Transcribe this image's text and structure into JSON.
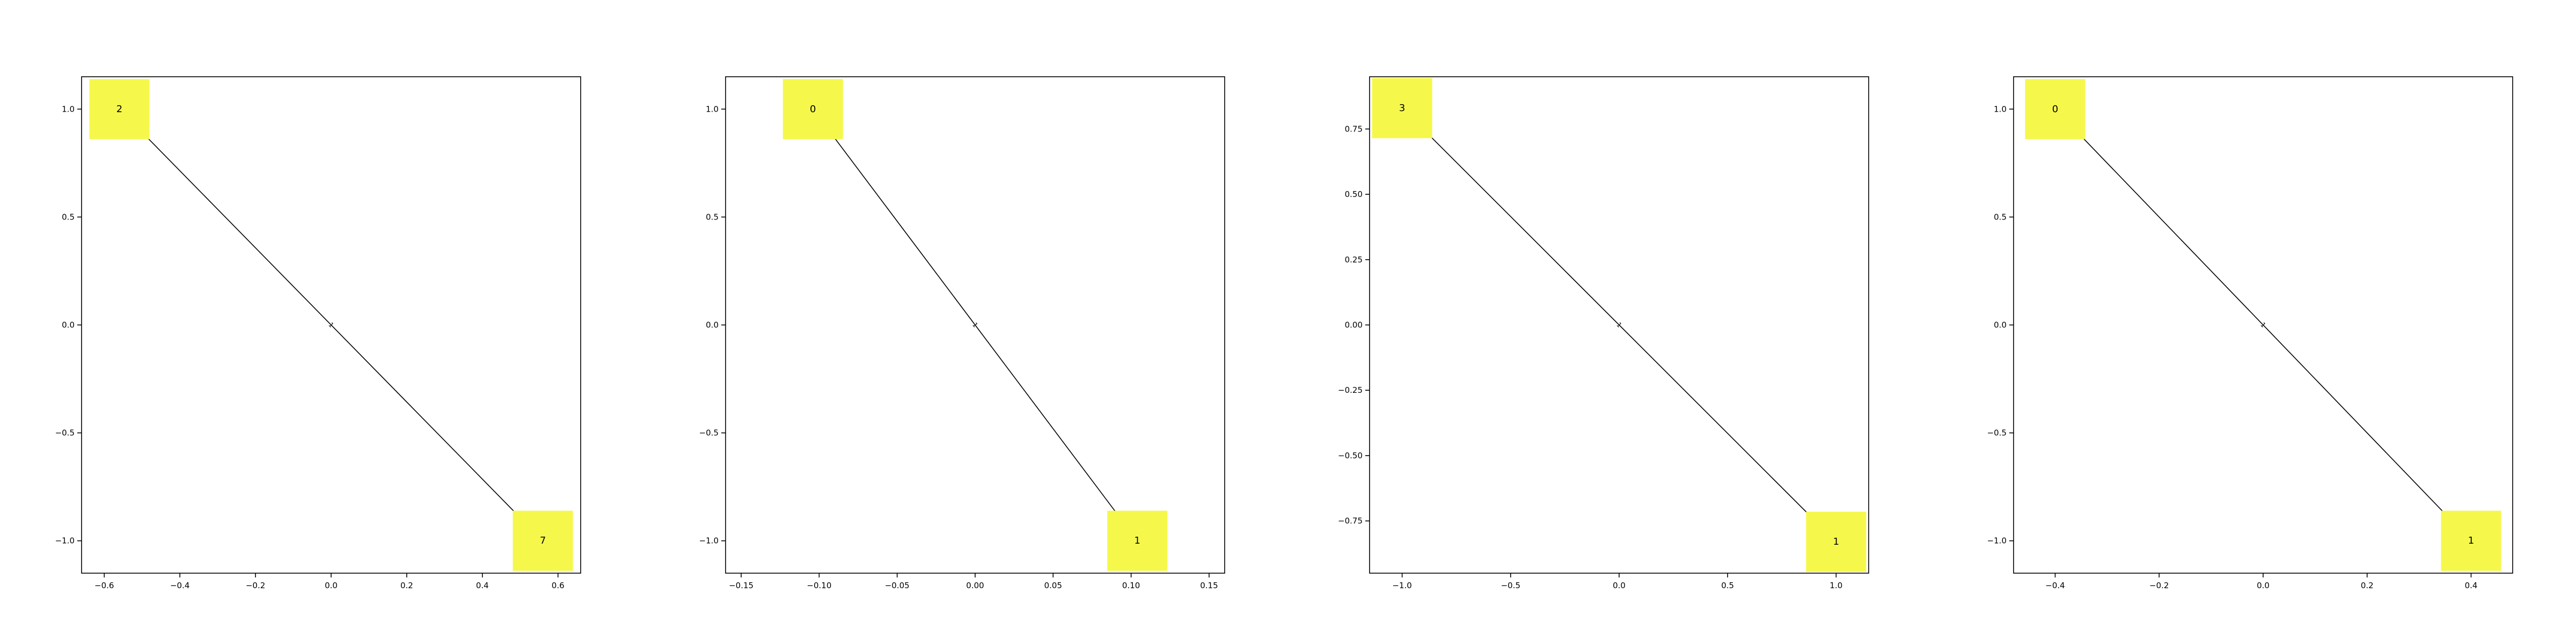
{
  "chart_data": [
    {
      "type": "graph",
      "xlim": [
        -0.66,
        0.66
      ],
      "ylim": [
        -1.15,
        1.15
      ],
      "xticks": [
        -0.6,
        -0.4,
        -0.2,
        0.0,
        0.2,
        0.4,
        0.6
      ],
      "xtick_labels": [
        "−0.6",
        "−0.4",
        "−0.2",
        "0.0",
        "0.2",
        "0.4",
        "0.6"
      ],
      "yticks": [
        1.0,
        0.5,
        0.0,
        -0.5,
        -1.0
      ],
      "ytick_labels": [
        "1.0",
        "0.5",
        "0.0",
        "−0.5",
        "−1.0"
      ],
      "nodes": [
        {
          "label": "2",
          "x": -0.56,
          "y": 1.0
        },
        {
          "label": "7",
          "x": 0.56,
          "y": -1.0
        }
      ],
      "edges": [
        {
          "from": 0,
          "to": 1,
          "label": "1"
        }
      ]
    },
    {
      "type": "graph",
      "xlim": [
        -0.16,
        0.16
      ],
      "ylim": [
        -1.15,
        1.15
      ],
      "xticks": [
        -0.15,
        -0.1,
        -0.05,
        0.0,
        0.05,
        0.1,
        0.15
      ],
      "xtick_labels": [
        "−0.15",
        "−0.10",
        "−0.05",
        "0.00",
        "0.05",
        "0.10",
        "0.15"
      ],
      "yticks": [
        1.0,
        0.5,
        0.0,
        -0.5,
        -1.0
      ],
      "ytick_labels": [
        "1.0",
        "0.5",
        "0.0",
        "−0.5",
        "−1.0"
      ],
      "nodes": [
        {
          "label": "0",
          "x": -0.104,
          "y": 1.0
        },
        {
          "label": "1",
          "x": 0.104,
          "y": -1.0
        }
      ],
      "edges": [
        {
          "from": 0,
          "to": 1,
          "label": "1"
        }
      ]
    },
    {
      "type": "graph",
      "xlim": [
        -1.15,
        1.15
      ],
      "ylim": [
        -0.95,
        0.95
      ],
      "xticks": [
        -1.0,
        -0.5,
        0.0,
        0.5,
        1.0
      ],
      "xtick_labels": [
        "−1.0",
        "−0.5",
        "0.0",
        "0.5",
        "1.0"
      ],
      "yticks": [
        0.75,
        0.5,
        0.25,
        0.0,
        -0.25,
        -0.5,
        -0.75
      ],
      "ytick_labels": [
        "0.75",
        "0.50",
        "0.25",
        "0.00",
        "−0.25",
        "−0.50",
        "−0.75"
      ],
      "nodes": [
        {
          "label": "3",
          "x": -1.0,
          "y": 0.83
        },
        {
          "label": "1",
          "x": 1.0,
          "y": -0.83
        }
      ],
      "edges": [
        {
          "from": 0,
          "to": 1,
          "label": "1"
        }
      ]
    },
    {
      "type": "graph",
      "xlim": [
        -0.48,
        0.48
      ],
      "ylim": [
        -1.15,
        1.15
      ],
      "xticks": [
        -0.4,
        -0.2,
        0.0,
        0.2,
        0.4
      ],
      "xtick_labels": [
        "−0.4",
        "−0.2",
        "0.0",
        "0.2",
        "0.4"
      ],
      "yticks": [
        1.0,
        0.5,
        0.0,
        -0.5,
        -1.0
      ],
      "ytick_labels": [
        "1.0",
        "0.5",
        "0.0",
        "−0.5",
        "−1.0"
      ],
      "nodes": [
        {
          "label": "0",
          "x": -0.4,
          "y": 1.0
        },
        {
          "label": "1",
          "x": 0.4,
          "y": -1.0
        }
      ],
      "edges": [
        {
          "from": 0,
          "to": 1,
          "label": "1"
        }
      ]
    }
  ]
}
